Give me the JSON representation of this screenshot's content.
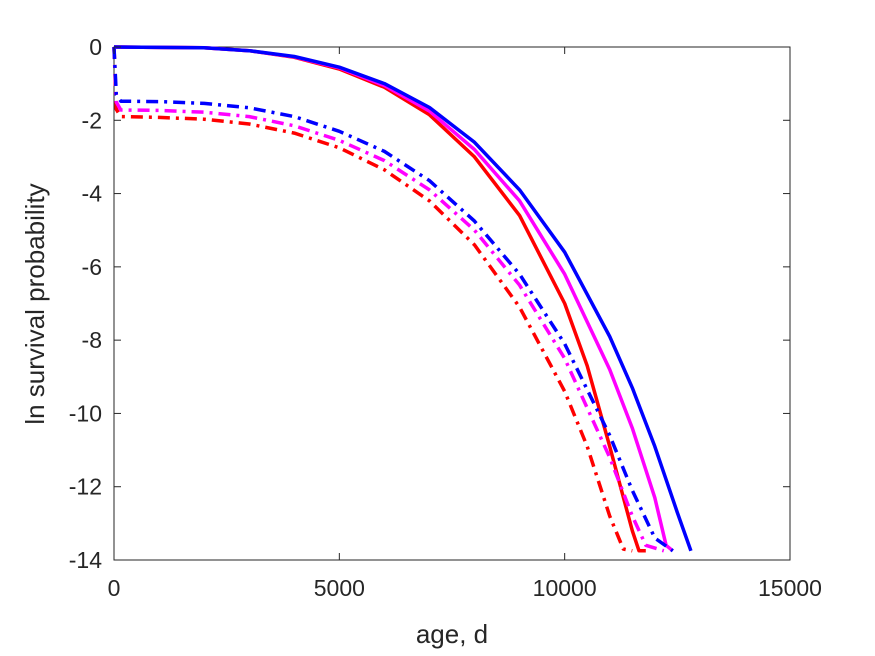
{
  "chart_data": {
    "type": "line",
    "xlabel": "age, d",
    "ylabel": "ln survival probability",
    "xlim": [
      0,
      15000
    ],
    "ylim": [
      -14,
      0
    ],
    "xticks": [
      0,
      5000,
      10000,
      15000
    ],
    "yticks": [
      0,
      -2,
      -4,
      -6,
      -8,
      -10,
      -12,
      -14
    ],
    "grid": false,
    "legend": "none",
    "series": [
      {
        "color": "#ff0000",
        "style": "solid",
        "x": [
          0,
          2000,
          3000,
          4000,
          5000,
          6000,
          7000,
          8000,
          9000,
          10000,
          10500,
          11000,
          11500,
          11650,
          11800
        ],
        "y": [
          0,
          -0.02,
          -0.1,
          -0.28,
          -0.6,
          -1.1,
          -1.85,
          -3.0,
          -4.6,
          -7.0,
          -8.7,
          -10.9,
          -13.2,
          -13.75,
          -13.75
        ]
      },
      {
        "color": "#ff00ff",
        "style": "solid",
        "x": [
          0,
          2000,
          3000,
          4000,
          5000,
          6000,
          7000,
          8000,
          9000,
          10000,
          11000,
          11500,
          12000,
          12250,
          12400
        ],
        "y": [
          0,
          -0.02,
          -0.1,
          -0.27,
          -0.57,
          -1.05,
          -1.75,
          -2.8,
          -4.2,
          -6.2,
          -8.8,
          -10.4,
          -12.3,
          -13.6,
          -13.75
        ]
      },
      {
        "color": "#0000ff",
        "style": "solid",
        "x": [
          0,
          2000,
          3000,
          4000,
          5000,
          6000,
          7000,
          8000,
          9000,
          10000,
          11000,
          11500,
          12000,
          12500,
          12800
        ],
        "y": [
          0,
          -0.02,
          -0.1,
          -0.26,
          -0.55,
          -1.0,
          -1.65,
          -2.6,
          -3.9,
          -5.6,
          -7.9,
          -9.3,
          -10.9,
          -12.7,
          -13.75
        ]
      },
      {
        "color": "#ff0000",
        "style": "dashdot",
        "x": [
          0,
          50,
          150,
          1000,
          2000,
          3000,
          4000,
          5000,
          6000,
          7000,
          8000,
          9000,
          10000,
          10500,
          11000,
          11300,
          11500
        ],
        "y": [
          0,
          -1.7,
          -1.9,
          -1.92,
          -1.97,
          -2.1,
          -2.35,
          -2.75,
          -3.35,
          -4.2,
          -5.4,
          -7.1,
          -9.4,
          -10.9,
          -12.8,
          -13.7,
          -13.75
        ]
      },
      {
        "color": "#ff00ff",
        "style": "dashdot",
        "x": [
          0,
          50,
          150,
          1000,
          2000,
          3000,
          4000,
          5000,
          6000,
          7000,
          8000,
          9000,
          10000,
          11000,
          11500,
          11800,
          12200
        ],
        "y": [
          0,
          -1.5,
          -1.72,
          -1.73,
          -1.78,
          -1.9,
          -2.15,
          -2.55,
          -3.1,
          -3.9,
          -5.0,
          -6.5,
          -8.5,
          -11.2,
          -12.8,
          -13.6,
          -13.75
        ]
      },
      {
        "color": "#0000ff",
        "style": "dashdot",
        "x": [
          0,
          50,
          150,
          1000,
          2000,
          3000,
          4000,
          5000,
          6000,
          7000,
          8000,
          9000,
          10000,
          11000,
          11500,
          12000,
          12400
        ],
        "y": [
          0,
          -1.3,
          -1.48,
          -1.49,
          -1.54,
          -1.66,
          -1.9,
          -2.3,
          -2.85,
          -3.65,
          -4.75,
          -6.2,
          -8.1,
          -10.6,
          -12.1,
          -13.4,
          -13.75
        ]
      }
    ]
  }
}
